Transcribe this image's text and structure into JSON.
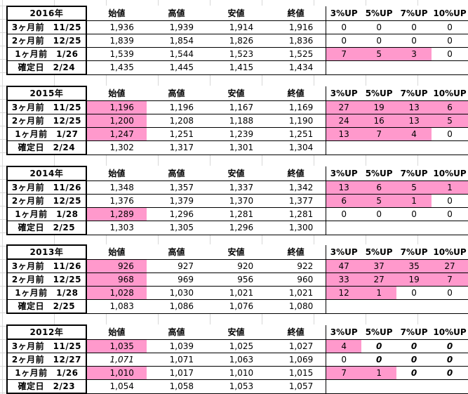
{
  "headers": {
    "open": "始値",
    "high": "高値",
    "low": "安値",
    "close": "終値",
    "up3": "3%UP",
    "up5": "5%UP",
    "up7": "7%UP",
    "up10": "10%UP"
  },
  "blocks": [
    {
      "year": "2016年",
      "rows": [
        {
          "label": "3ヶ月前　11/25",
          "open": "1,936",
          "high": "1,939",
          "low": "1,914",
          "close": "1,916",
          "up3": "0",
          "up5": "0",
          "up7": "0",
          "up10": "0"
        },
        {
          "label": "2ヶ月前　12/25",
          "open": "1,839",
          "high": "1,854",
          "low": "1,826",
          "close": "1,836",
          "up3": "0",
          "up5": "0",
          "up7": "0",
          "up10": "0"
        },
        {
          "label": "1ヶ月前　1/26",
          "open": "1,539",
          "high": "1,544",
          "low": "1,523",
          "close": "1,525",
          "up3": "7",
          "up5": "5",
          "up7": "3",
          "up10": "0"
        },
        {
          "label": "確定日　2/24",
          "open": "1,435",
          "high": "1,445",
          "low": "1,415",
          "close": "1,434",
          "up3": "",
          "up5": "",
          "up7": "",
          "up10": ""
        }
      ]
    },
    {
      "year": "2015年",
      "rows": [
        {
          "label": "3ヶ月前　11/25",
          "open": "1,196",
          "high": "1,196",
          "low": "1,167",
          "close": "1,169",
          "up3": "27",
          "up5": "19",
          "up7": "13",
          "up10": "6"
        },
        {
          "label": "2ヶ月前　12/25",
          "open": "1,200",
          "high": "1,208",
          "low": "1,188",
          "close": "1,190",
          "up3": "24",
          "up5": "16",
          "up7": "13",
          "up10": "5"
        },
        {
          "label": "1ヶ月前　1/27",
          "open": "1,247",
          "high": "1,251",
          "low": "1,239",
          "close": "1,251",
          "up3": "13",
          "up5": "7",
          "up7": "4",
          "up10": "0"
        },
        {
          "label": "確定日　2/24",
          "open": "1,302",
          "high": "1,317",
          "low": "1,301",
          "close": "1,304",
          "up3": "",
          "up5": "",
          "up7": "",
          "up10": ""
        }
      ]
    },
    {
      "year": "2014年",
      "rows": [
        {
          "label": "3ヶ月前　11/26",
          "open": "1,348",
          "high": "1,357",
          "low": "1,337",
          "close": "1,342",
          "up3": "13",
          "up5": "6",
          "up7": "5",
          "up10": "1"
        },
        {
          "label": "2ヶ月前　12/25",
          "open": "1,376",
          "high": "1,379",
          "low": "1,370",
          "close": "1,377",
          "up3": "6",
          "up5": "5",
          "up7": "1",
          "up10": "0"
        },
        {
          "label": "1ヶ月前　1/28",
          "open": "1,289",
          "high": "1,296",
          "low": "1,281",
          "close": "1,281",
          "up3": "0",
          "up5": "0",
          "up7": "0",
          "up10": "0"
        },
        {
          "label": "確定日　2/25",
          "open": "1,303",
          "high": "1,305",
          "low": "1,296",
          "close": "1,300",
          "up3": "",
          "up5": "",
          "up7": "",
          "up10": ""
        }
      ]
    },
    {
      "year": "2013年",
      "rows": [
        {
          "label": "3ヶ月前　11/26",
          "open": "926",
          "high": "927",
          "low": "920",
          "close": "922",
          "up3": "47",
          "up5": "37",
          "up7": "35",
          "up10": "27"
        },
        {
          "label": "2ヶ月前　12/25",
          "open": "968",
          "high": "969",
          "low": "956",
          "close": "960",
          "up3": "33",
          "up5": "27",
          "up7": "19",
          "up10": "7"
        },
        {
          "label": "1ヶ月前　1/28",
          "open": "1,028",
          "high": "1,030",
          "low": "1,021",
          "close": "1,021",
          "up3": "12",
          "up5": "1",
          "up7": "0",
          "up10": "0"
        },
        {
          "label": "確定日　2/25",
          "open": "1,083",
          "high": "1,086",
          "low": "1,076",
          "close": "1,080",
          "up3": "",
          "up5": "",
          "up7": "",
          "up10": ""
        }
      ]
    },
    {
      "year": "2012年",
      "rows": [
        {
          "label": "3ヶ月前　11/25",
          "open": "1,035",
          "high": "1,039",
          "low": "1,025",
          "close": "1,027",
          "up3": "4",
          "up5": "0",
          "up7": "0",
          "up10": "0"
        },
        {
          "label": "2ヶ月前　12/27",
          "open": "1,071",
          "high": "1,071",
          "low": "1,063",
          "close": "1,069",
          "up3": "0",
          "up5": "0",
          "up7": "0",
          "up10": "0"
        },
        {
          "label": "1ヶ月前　1/26",
          "open": "1,010",
          "high": "1,017",
          "low": "1,010",
          "close": "1,015",
          "up3": "7",
          "up5": "1",
          "up7": "0",
          "up10": "0"
        },
        {
          "label": "確定日　2/23",
          "open": "1,054",
          "high": "1,058",
          "low": "1,053",
          "close": "1,057",
          "up3": "",
          "up5": "",
          "up7": "",
          "up10": ""
        }
      ]
    }
  ],
  "highlight_color": "#ff99cc"
}
